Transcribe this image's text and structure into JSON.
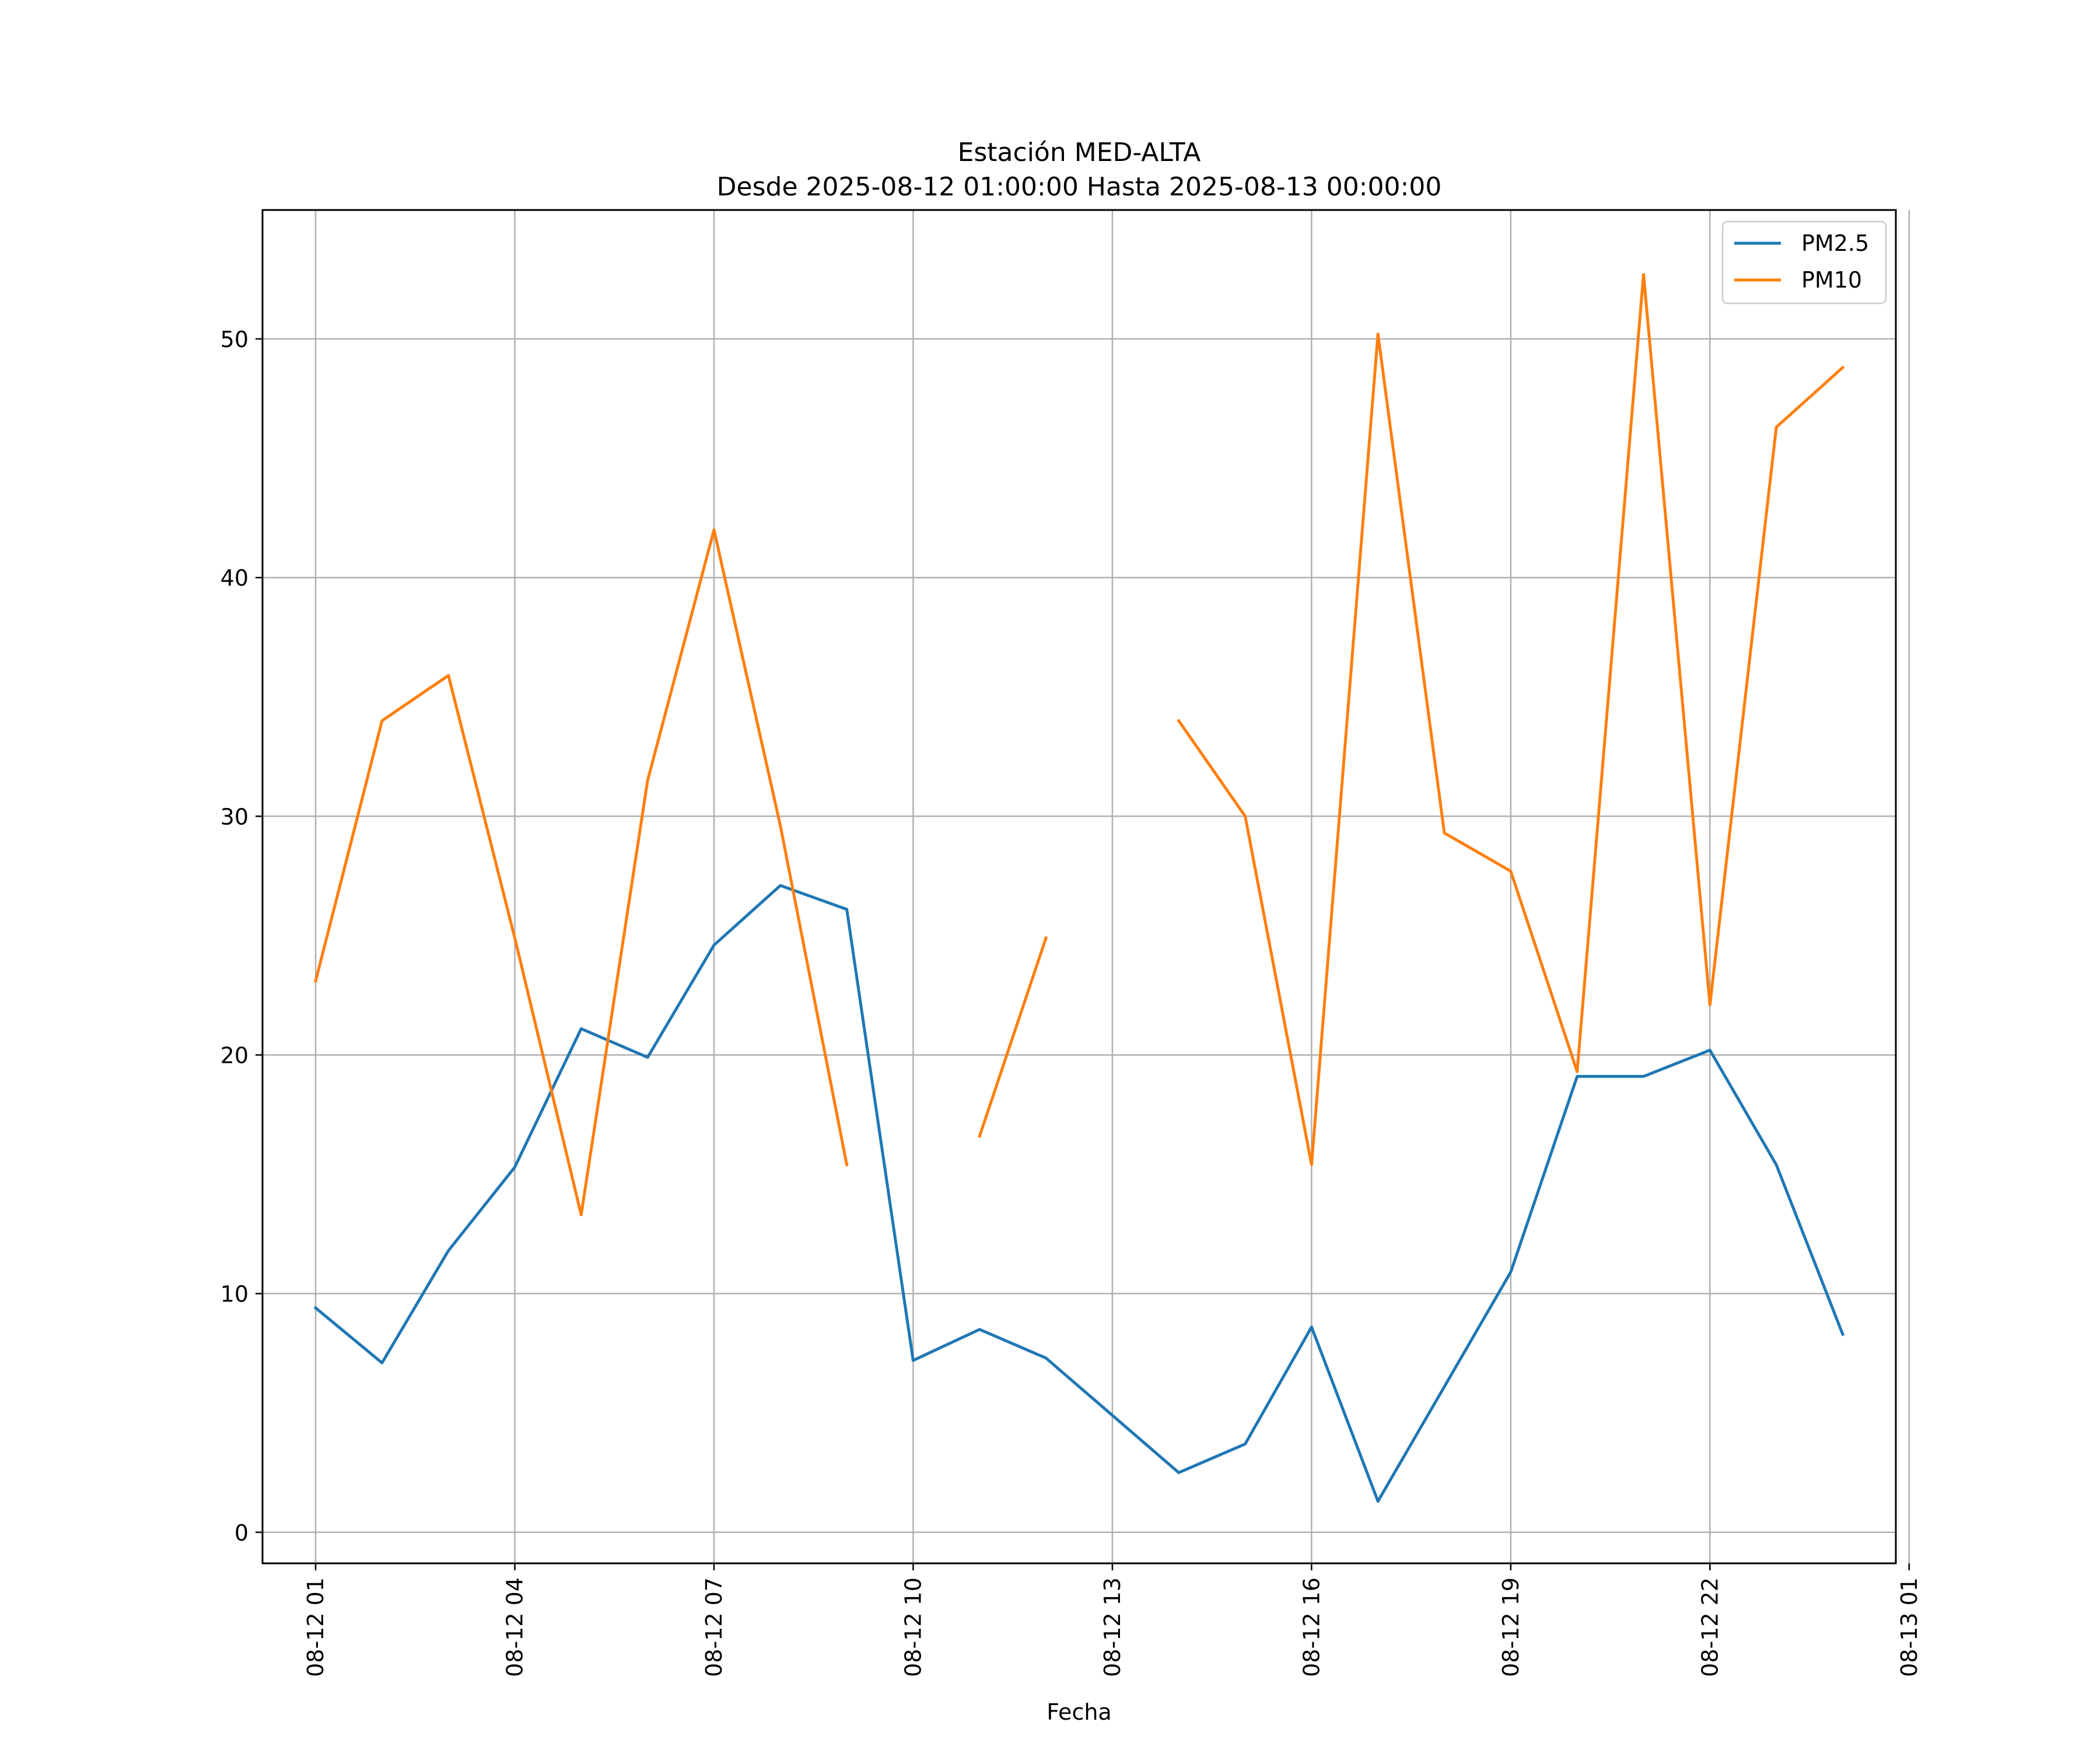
{
  "chart_data": {
    "type": "line",
    "title": "Estación MED-ALTA",
    "subtitle": "Desde 2025-08-12 01:00:00 Hasta 2025-08-13 00:00:00",
    "xlabel": "Fecha",
    "ylabel": "",
    "x": [
      "2025-08-12 01:00",
      "2025-08-12 02:00",
      "2025-08-12 03:00",
      "2025-08-12 04:00",
      "2025-08-12 05:00",
      "2025-08-12 06:00",
      "2025-08-12 07:00",
      "2025-08-12 08:00",
      "2025-08-12 09:00",
      "2025-08-12 10:00",
      "2025-08-12 11:00",
      "2025-08-12 12:00",
      "2025-08-12 13:00",
      "2025-08-12 14:00",
      "2025-08-12 15:00",
      "2025-08-12 16:00",
      "2025-08-12 17:00",
      "2025-08-12 18:00",
      "2025-08-12 19:00",
      "2025-08-12 20:00",
      "2025-08-12 21:00",
      "2025-08-12 22:00",
      "2025-08-12 23:00",
      "2025-08-13 00:00"
    ],
    "xlim": [
      "2025-08-12 00:12",
      "2025-08-13 00:48"
    ],
    "ylim": [
      -1.3,
      55.4
    ],
    "x_tick_labels": [
      "08-12 01",
      "08-12 04",
      "08-12 07",
      "08-12 10",
      "08-12 13",
      "08-12 16",
      "08-12 19",
      "08-12 22",
      "08-13 01"
    ],
    "x_ticks": [
      "2025-08-12 01:00",
      "2025-08-12 04:00",
      "2025-08-12 07:00",
      "2025-08-12 10:00",
      "2025-08-12 13:00",
      "2025-08-12 16:00",
      "2025-08-12 19:00",
      "2025-08-12 22:00",
      "2025-08-13 01:00"
    ],
    "y_ticks": [
      0,
      10,
      20,
      30,
      40,
      50
    ],
    "y_tick_labels": [
      "0",
      "10",
      "20",
      "30",
      "40",
      "50"
    ],
    "grid": true,
    "legend": "top-right",
    "series": [
      {
        "name": "PM2.5",
        "color": "#1f77b4",
        "values": [
          9.4,
          7.1,
          11.8,
          15.3,
          21.1,
          19.9,
          24.6,
          27.1,
          26.1,
          7.2,
          8.5,
          7.3,
          4.9,
          2.5,
          3.7,
          8.6,
          1.3,
          6.1,
          10.9,
          19.1,
          19.1,
          20.2,
          15.4,
          8.3
        ]
      },
      {
        "name": "PM10",
        "color": "#ff7f0e",
        "values": [
          23.1,
          34.0,
          35.9,
          24.9,
          13.3,
          31.5,
          42.0,
          29.6,
          15.4,
          null,
          16.6,
          24.9,
          null,
          34.0,
          30.0,
          15.4,
          50.2,
          29.3,
          27.7,
          19.3,
          52.7,
          22.1,
          46.3,
          48.8
        ]
      }
    ]
  }
}
